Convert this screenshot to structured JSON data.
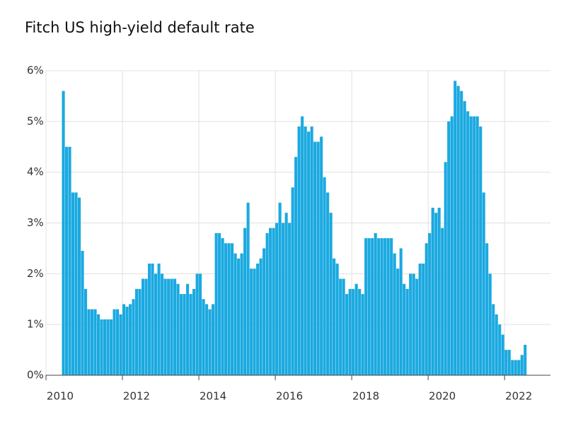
{
  "chart_data": {
    "type": "bar",
    "title": "Fitch US high-yield default rate",
    "x": [
      2010.417,
      2010.5,
      2010.583,
      2010.667,
      2010.75,
      2010.833,
      2010.917,
      2011,
      2011.083,
      2011.167,
      2011.25,
      2011.333,
      2011.417,
      2011.5,
      2011.583,
      2011.667,
      2011.75,
      2011.833,
      2011.917,
      2012,
      2012.083,
      2012.167,
      2012.25,
      2012.333,
      2012.417,
      2012.5,
      2012.583,
      2012.667,
      2012.75,
      2012.833,
      2012.917,
      2013,
      2013.083,
      2013.167,
      2013.25,
      2013.333,
      2013.417,
      2013.5,
      2013.583,
      2013.667,
      2013.75,
      2013.833,
      2013.917,
      2014,
      2014.083,
      2014.167,
      2014.25,
      2014.333,
      2014.417,
      2014.5,
      2014.583,
      2014.667,
      2014.75,
      2014.833,
      2014.917,
      2015,
      2015.083,
      2015.167,
      2015.25,
      2015.333,
      2015.417,
      2015.5,
      2015.583,
      2015.667,
      2015.75,
      2015.833,
      2015.917,
      2016,
      2016.083,
      2016.167,
      2016.25,
      2016.333,
      2016.417,
      2016.5,
      2016.583,
      2016.667,
      2016.75,
      2016.833,
      2016.917,
      2017,
      2017.083,
      2017.167,
      2017.25,
      2017.333,
      2017.417,
      2017.5,
      2017.583,
      2017.667,
      2017.75,
      2017.833,
      2017.917,
      2018,
      2018.083,
      2018.167,
      2018.25,
      2018.333,
      2018.417,
      2018.5,
      2018.583,
      2018.667,
      2018.75,
      2018.833,
      2018.917,
      2019,
      2019.083,
      2019.167,
      2019.25,
      2019.333,
      2019.417,
      2019.5,
      2019.583,
      2019.667,
      2019.75,
      2019.833,
      2019.917,
      2020,
      2020.083,
      2020.167,
      2020.25,
      2020.333,
      2020.417,
      2020.5,
      2020.583,
      2020.667,
      2020.75,
      2020.833,
      2020.917,
      2021,
      2021.083,
      2021.167,
      2021.25,
      2021.333,
      2021.417,
      2021.5,
      2021.583,
      2021.667,
      2021.75,
      2021.833,
      2021.917,
      2022,
      2022.083,
      2022.167,
      2022.25,
      2022.333,
      2022.417,
      2022.5
    ],
    "values": [
      5.6,
      4.5,
      4.5,
      3.6,
      3.6,
      3.5,
      2.45,
      1.7,
      1.3,
      1.3,
      1.3,
      1.2,
      1.1,
      1.1,
      1.1,
      1.1,
      1.3,
      1.3,
      1.2,
      1.4,
      1.35,
      1.4,
      1.5,
      1.7,
      1.7,
      1.9,
      1.9,
      2.2,
      2.2,
      2.0,
      2.2,
      2.0,
      1.9,
      1.9,
      1.9,
      1.9,
      1.8,
      1.6,
      1.6,
      1.8,
      1.6,
      1.7,
      2.0,
      2.0,
      1.5,
      1.4,
      1.3,
      1.4,
      2.8,
      2.8,
      2.7,
      2.6,
      2.6,
      2.6,
      2.4,
      2.3,
      2.4,
      2.9,
      3.4,
      2.1,
      2.1,
      2.2,
      2.3,
      2.5,
      2.8,
      2.9,
      2.9,
      3.0,
      3.4,
      3.0,
      3.2,
      3.0,
      3.7,
      4.3,
      4.9,
      5.1,
      4.9,
      4.8,
      4.9,
      4.6,
      4.6,
      4.7,
      3.9,
      3.6,
      3.2,
      2.3,
      2.2,
      1.9,
      1.9,
      1.6,
      1.7,
      1.7,
      1.8,
      1.7,
      1.6,
      2.7,
      2.7,
      2.7,
      2.8,
      2.7,
      2.7,
      2.7,
      2.7,
      2.7,
      2.4,
      2.1,
      2.5,
      1.8,
      1.7,
      2.0,
      2.0,
      1.9,
      2.2,
      2.2,
      2.6,
      2.8,
      3.3,
      3.2,
      3.3,
      2.9,
      4.2,
      5.0,
      5.1,
      5.8,
      5.7,
      5.6,
      5.4,
      5.2,
      5.1,
      5.1,
      5.1,
      4.9,
      3.6,
      2.6,
      2.0,
      1.4,
      1.2,
      1.0,
      0.8,
      0.5,
      0.5,
      0.3,
      0.3,
      0.3,
      0.4,
      0.6
    ],
    "color": "#1aa9e0",
    "xlim": [
      2010,
      2023.2
    ],
    "xticks": [
      2010,
      2012,
      2014,
      2016,
      2018,
      2020,
      2022
    ],
    "ylim": [
      0,
      6
    ],
    "yticks": [
      {
        "value": 0,
        "label": "0%"
      },
      {
        "value": 1,
        "label": "1%"
      },
      {
        "value": 2,
        "label": "2%"
      },
      {
        "value": 3,
        "label": "3%"
      },
      {
        "value": 4,
        "label": "4%"
      },
      {
        "value": 5,
        "label": "5%"
      },
      {
        "value": 6,
        "label": "6%"
      }
    ],
    "grid": true
  }
}
